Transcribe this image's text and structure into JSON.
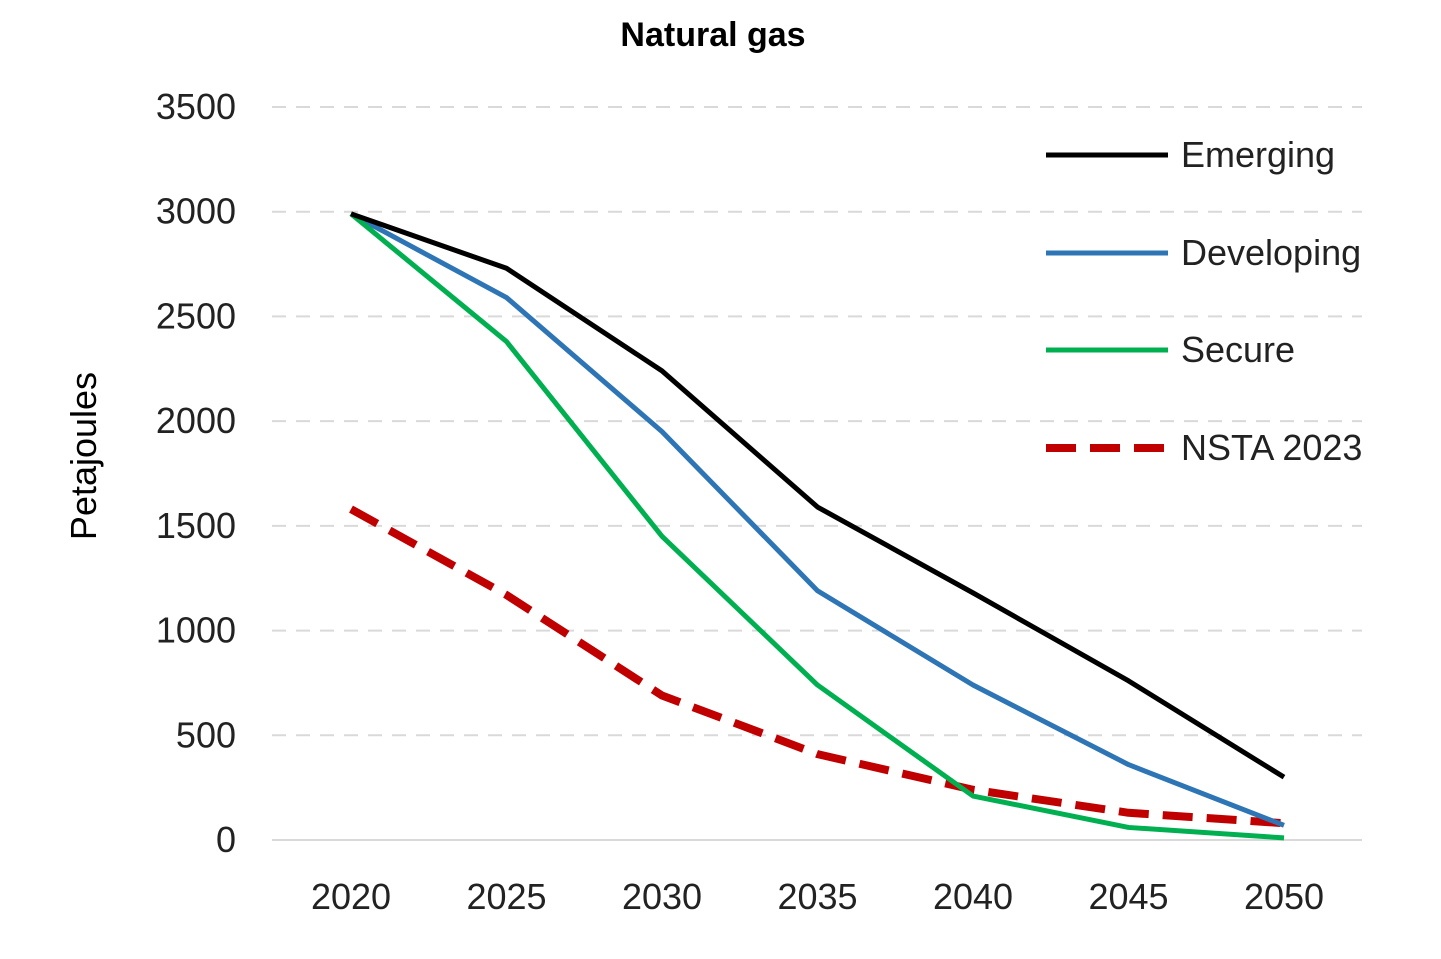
{
  "chart_data": {
    "type": "line",
    "title": "Natural gas",
    "xlabel": "",
    "ylabel": "Petajoules",
    "categories": [
      "2020",
      "2025",
      "2030",
      "2035",
      "2040",
      "2045",
      "2050"
    ],
    "ylim": [
      0,
      3500
    ],
    "yticks": [
      "0",
      "500",
      "1000",
      "1500",
      "2000",
      "2500",
      "3000",
      "3500"
    ],
    "grid": true,
    "legend_position": "top-right",
    "series": [
      {
        "name": "Emerging",
        "color": "#000000",
        "style": "solid",
        "values": [
          2990,
          2730,
          2240,
          1590,
          1180,
          760,
          300
        ]
      },
      {
        "name": "Developing",
        "color": "#2e75b6",
        "style": "solid",
        "values": [
          2990,
          2590,
          1950,
          1190,
          740,
          360,
          70
        ]
      },
      {
        "name": "Secure",
        "color": "#00b050",
        "style": "solid",
        "values": [
          2990,
          2380,
          1450,
          740,
          210,
          60,
          10
        ]
      },
      {
        "name": "NSTA 2023",
        "color": "#c00000",
        "style": "dashed",
        "values": [
          1580,
          1170,
          690,
          410,
          240,
          130,
          80
        ]
      }
    ]
  }
}
